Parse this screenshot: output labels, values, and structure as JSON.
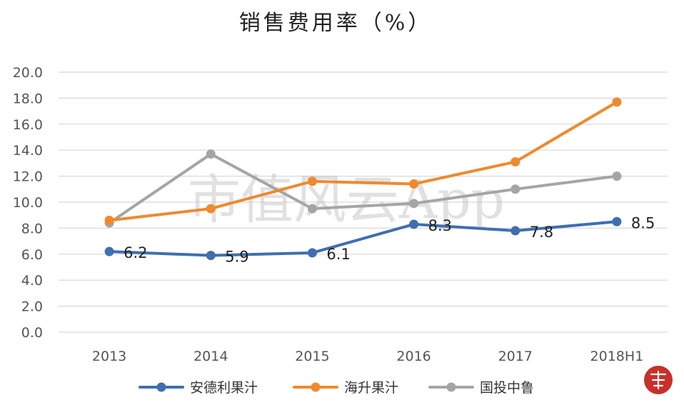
{
  "chart_data": {
    "type": "line",
    "title": "销售费用率（%）",
    "xlabel": "",
    "ylabel": "",
    "categories": [
      "2013",
      "2014",
      "2015",
      "2016",
      "2017",
      "2018H1"
    ],
    "ylim": [
      0,
      20
    ],
    "yticks": [
      "0.0",
      "2.0",
      "4.0",
      "6.0",
      "8.0",
      "10.0",
      "12.0",
      "14.0",
      "16.0",
      "18.0",
      "20.0"
    ],
    "grid": true,
    "legend_position": "bottom",
    "series": [
      {
        "name": "安德利果汁",
        "color": "#3f6faf",
        "values": [
          6.2,
          5.9,
          6.1,
          8.3,
          7.8,
          8.5
        ],
        "labels": [
          "6.2",
          "5.9",
          "6.1",
          "8.3",
          "7.8",
          "8.5"
        ]
      },
      {
        "name": "海升果汁",
        "color": "#ee8a2e",
        "values": [
          8.6,
          9.5,
          11.6,
          11.4,
          13.1,
          17.7
        ]
      },
      {
        "name": "国投中鲁",
        "color": "#a5a5a5",
        "values": [
          8.4,
          13.7,
          9.5,
          9.9,
          11.0,
          12.0
        ]
      }
    ]
  },
  "watermark": "市值风云App"
}
